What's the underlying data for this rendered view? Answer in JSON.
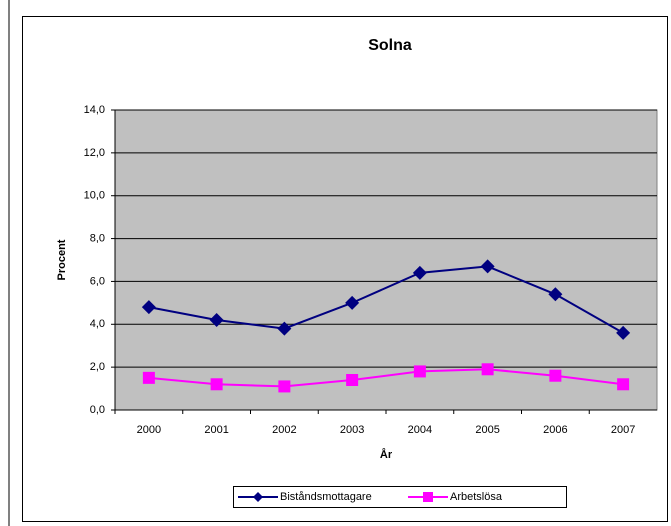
{
  "chart_data": {
    "type": "line",
    "title": "Solna",
    "y_label": "Procent",
    "x_label": "År",
    "categories": [
      "2000",
      "2001",
      "2002",
      "2003",
      "2004",
      "2005",
      "2006",
      "2007"
    ],
    "series": [
      {
        "name": "Biståndsmottagare",
        "color": "#000080",
        "marker": "diamond",
        "values": [
          4.8,
          4.2,
          3.8,
          5.0,
          6.4,
          6.7,
          5.4,
          3.6
        ]
      },
      {
        "name": "Arbetslösa",
        "color": "#ff00ff",
        "marker": "square",
        "values": [
          1.5,
          1.2,
          1.1,
          1.4,
          1.8,
          1.9,
          1.6,
          1.2
        ]
      }
    ],
    "ylim": [
      0,
      14
    ],
    "yticks": [
      {
        "value": 0,
        "label": "0,0"
      },
      {
        "value": 2,
        "label": "2,0"
      },
      {
        "value": 4,
        "label": "4,0"
      },
      {
        "value": 6,
        "label": "6,0"
      },
      {
        "value": 8,
        "label": "8,0"
      },
      {
        "value": 10,
        "label": "10,0"
      },
      {
        "value": 12,
        "label": "12,0"
      },
      {
        "value": 14,
        "label": "14,0"
      }
    ],
    "grid": true,
    "legend": "bottom"
  }
}
